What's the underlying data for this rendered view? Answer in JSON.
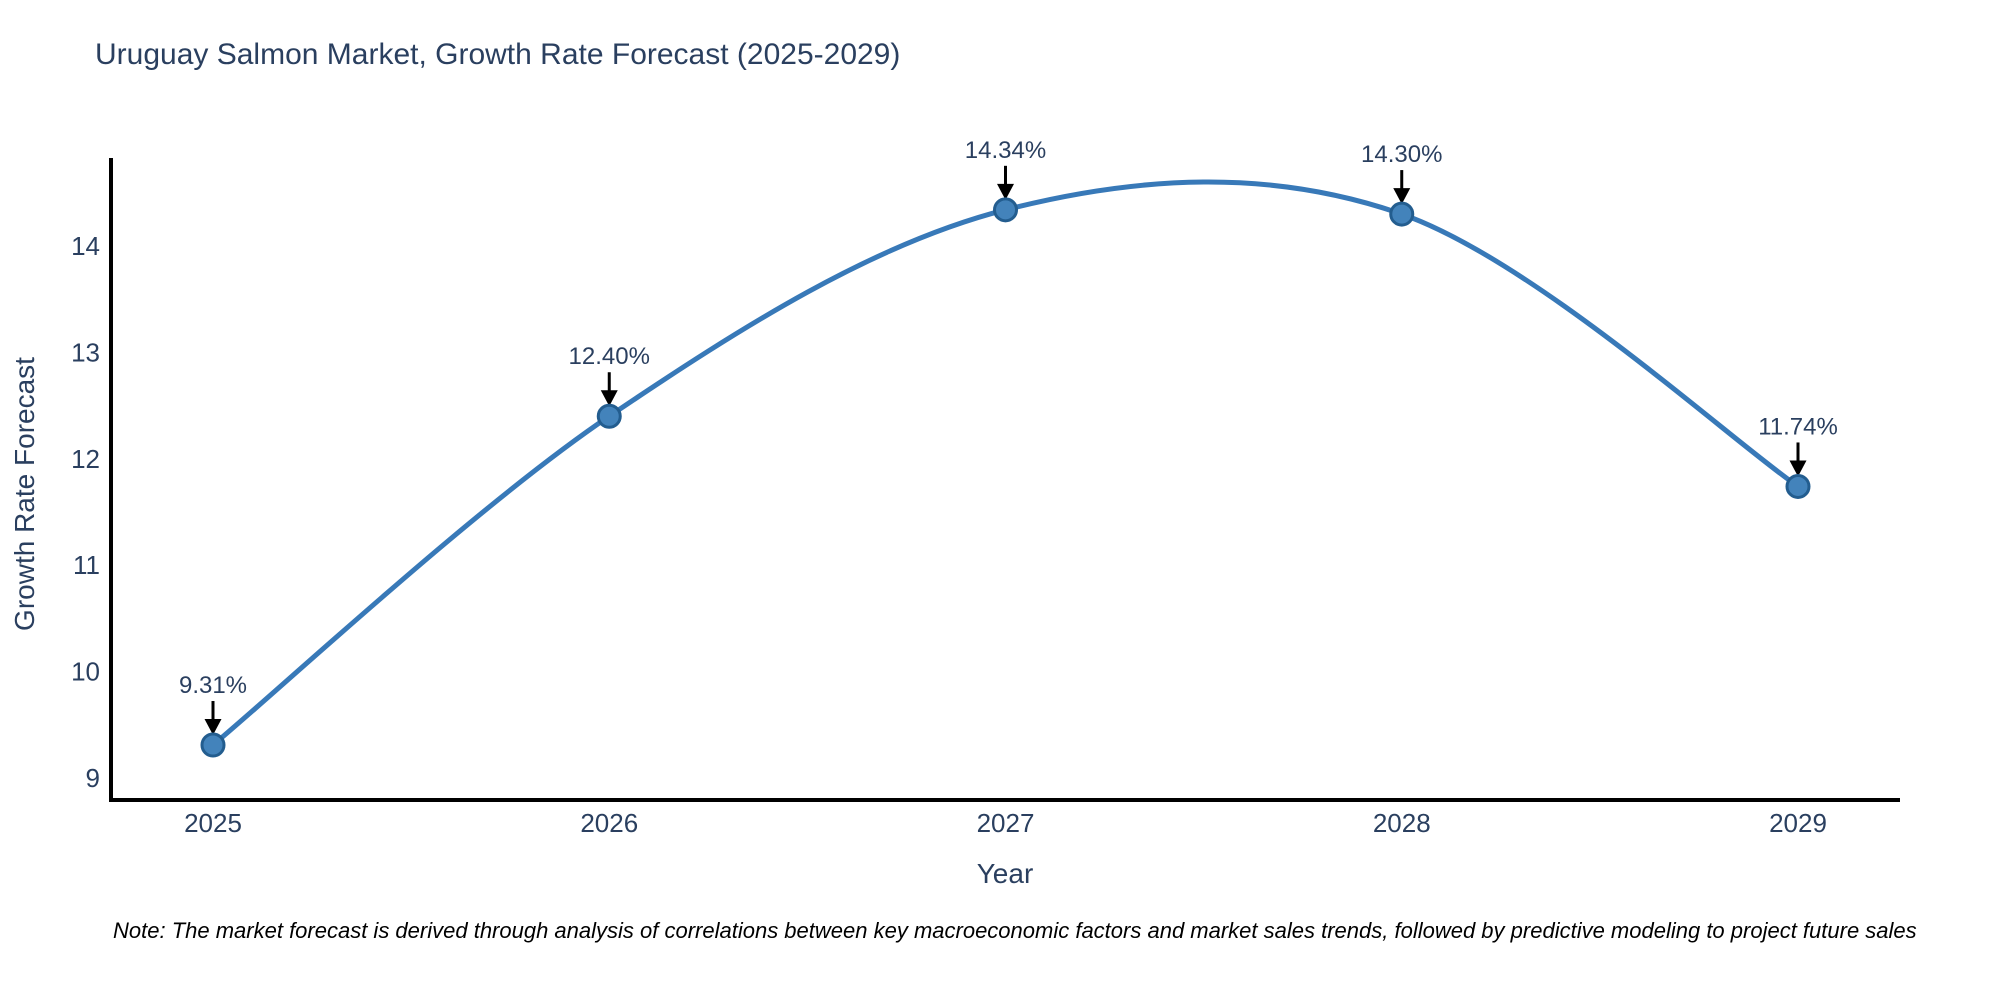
{
  "title": "Uruguay Salmon Market, Growth Rate Forecast (2025-2029)",
  "note": "Note: The market forecast is derived through analysis of correlations between key macroeconomic factors and market sales trends, followed by predictive modeling to project future sales",
  "chart_data": {
    "type": "line",
    "title": "Uruguay Salmon Market, Growth Rate Forecast (2025-2029)",
    "xlabel": "Year",
    "ylabel": "Growth Rate Forecast",
    "categories": [
      "2025",
      "2026",
      "2027",
      "2028",
      "2029"
    ],
    "values": [
      9.31,
      12.4,
      14.34,
      14.3,
      11.74
    ],
    "point_labels": [
      "9.31%",
      "12.40%",
      "14.34%",
      "14.30%",
      "11.74%"
    ],
    "y_ticks": [
      9,
      10,
      11,
      12,
      13,
      14
    ],
    "ylim": [
      8.8,
      14.85
    ],
    "line_shape": "spline",
    "grid": false,
    "legend_position": "none",
    "colors": {
      "line": "#3879b8",
      "marker_fill": "#4383bb",
      "marker_edge": "#235d8f",
      "axis_text": "#2a3f5f",
      "annotation_text": "#2a3f5f",
      "arrow": "#000000",
      "spine": "#000000",
      "background": "#ffffff"
    }
  }
}
